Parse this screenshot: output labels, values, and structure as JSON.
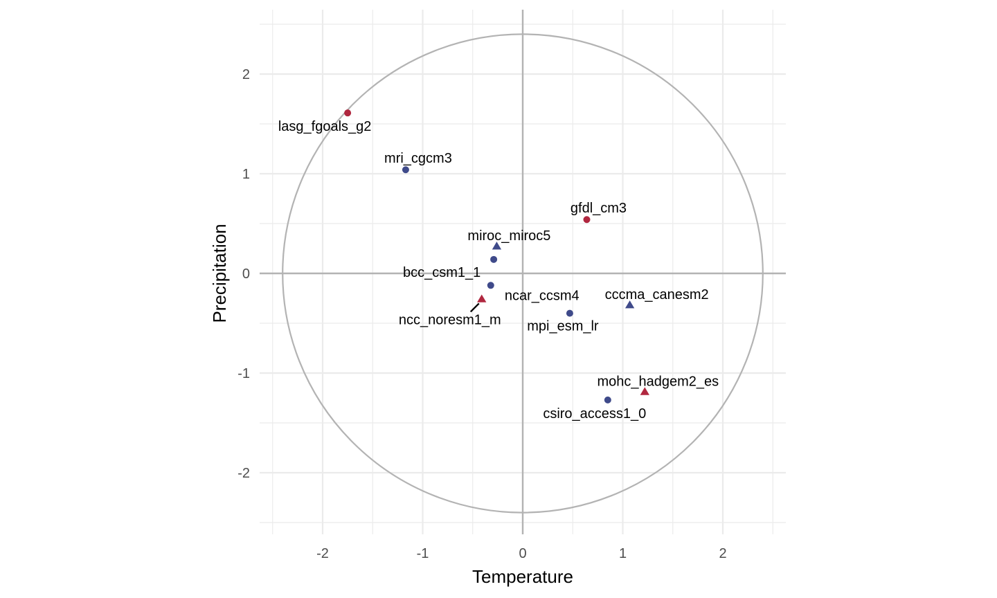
{
  "chart_data": {
    "type": "scatter",
    "title": "",
    "xlabel": "Temperature",
    "ylabel": "Precipitation",
    "xlim": [
      -2.65,
      2.65
    ],
    "ylim": [
      -2.6,
      2.6
    ],
    "x_ticks": [
      -2,
      -1,
      0,
      1,
      2
    ],
    "y_ticks": [
      -2,
      -1,
      0,
      1,
      2
    ],
    "x_tick_labels": [
      "-2",
      "-1",
      "0",
      "1",
      "2"
    ],
    "y_tick_labels": [
      "-2",
      "-1",
      "0",
      "1",
      "2"
    ],
    "grid": true,
    "reference_circle_radius": 2.4,
    "reference_lines": {
      "x": 0,
      "y": 0
    },
    "colors": {
      "navy": "#3f4a8a",
      "crimson": "#b0273f",
      "circle": "#b3b3b3",
      "grid": "#ebebeb"
    },
    "points": [
      {
        "label": "lasg_fgoals_g2",
        "x": -1.75,
        "y": 1.61,
        "shape": "circle",
        "color": "#b0273f"
      },
      {
        "label": "mri_cgcm3",
        "x": -1.17,
        "y": 1.04,
        "shape": "circle",
        "color": "#3f4a8a"
      },
      {
        "label": "gfdl_cm3",
        "x": 0.64,
        "y": 0.54,
        "shape": "circle",
        "color": "#b0273f"
      },
      {
        "label": "miroc_miroc5",
        "x": -0.26,
        "y": 0.27,
        "shape": "triangle",
        "color": "#3f4a8a"
      },
      {
        "label": "bcc_csm1_1",
        "x": -0.29,
        "y": 0.14,
        "shape": "circle",
        "color": "#3f4a8a"
      },
      {
        "label": "ncar_ccsm4",
        "x": -0.32,
        "y": -0.12,
        "shape": "circle",
        "color": "#3f4a8a"
      },
      {
        "label": "ncc_noresm1_m",
        "x": -0.41,
        "y": -0.26,
        "shape": "triangle",
        "color": "#b0273f"
      },
      {
        "label": "cccma_canesm2",
        "x": 1.07,
        "y": -0.32,
        "shape": "triangle",
        "color": "#3f4a8a"
      },
      {
        "label": "mpi_esm_lr",
        "x": 0.47,
        "y": -0.4,
        "shape": "circle",
        "color": "#3f4a8a"
      },
      {
        "label": "mohc_hadgem2_es",
        "x": 1.22,
        "y": -1.19,
        "shape": "triangle",
        "color": "#b0273f"
      },
      {
        "label": "csiro_access1_0",
        "x": 0.85,
        "y": -1.27,
        "shape": "circle",
        "color": "#3f4a8a"
      }
    ]
  }
}
